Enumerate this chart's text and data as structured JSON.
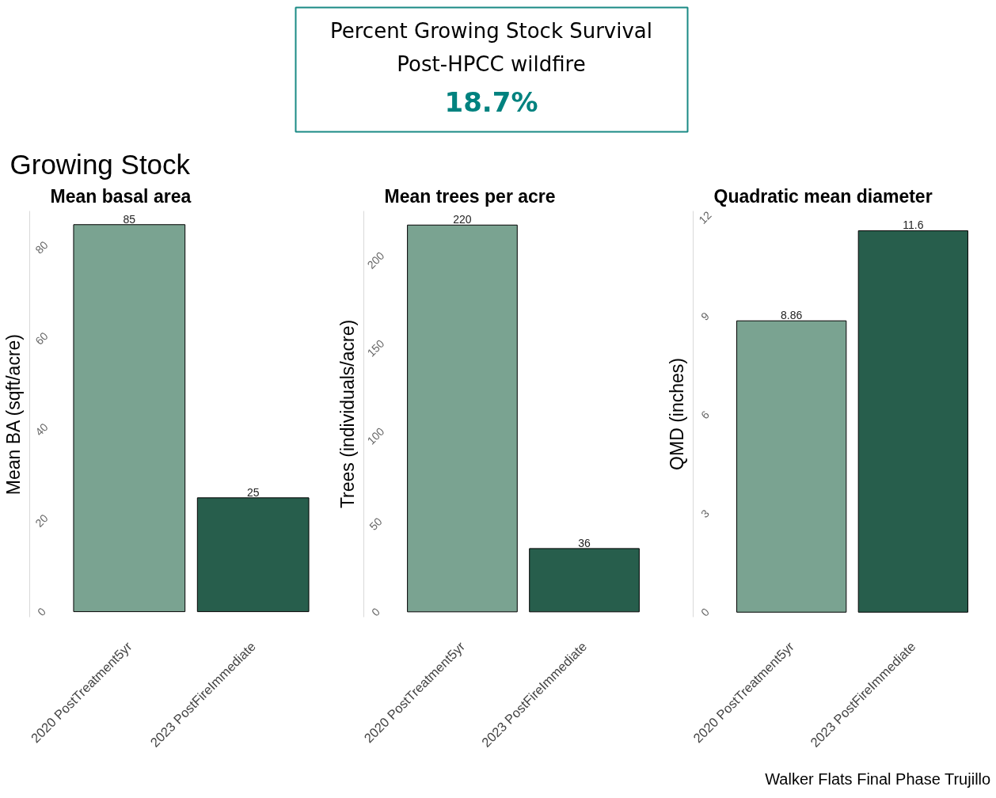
{
  "chart_data": [
    {
      "type": "other",
      "title": "Percent Growing Stock Survival\nPost-HPCC wildfire",
      "annotations": [
        "18.7%"
      ]
    },
    {
      "type": "bar",
      "subtitle": "Growing Stock",
      "title": "Mean basal area",
      "ylabel": "Mean BA (sqft/acre)",
      "categories": [
        "2020 PostTreatment5yr",
        "2023 PostFireImmediate"
      ],
      "values": [
        85,
        25
      ],
      "colors": [
        "#7aa391",
        "#275e4c"
      ],
      "ylim": [
        -1.2,
        88
      ],
      "yticks": [
        0,
        20,
        40,
        60,
        80
      ],
      "data_labels": true
    },
    {
      "type": "bar",
      "title": "Mean trees per acre",
      "ylabel": "Trees (individuals/acre)",
      "categories": [
        "2020 PostTreatment5yr",
        "2023 PostFireImmediate"
      ],
      "values": [
        220,
        36
      ],
      "colors": [
        "#7aa391",
        "#275e4c"
      ],
      "ylim": [
        -3,
        228
      ],
      "yticks": [
        0,
        50,
        100,
        150,
        200
      ],
      "data_labels": true
    },
    {
      "type": "bar",
      "title": "Quadratic mean diameter",
      "ylabel": "QMD (inches)",
      "categories": [
        "2020 PostTreatment5yr",
        "2023 PostFireImmediate"
      ],
      "values": [
        8.86,
        11.6
      ],
      "colors": [
        "#7aa391",
        "#275e4c"
      ],
      "ylim": [
        -0.15,
        12.2
      ],
      "yticks": [
        0,
        3,
        6,
        9,
        12
      ],
      "data_labels": true,
      "annotations": [
        "Walker Flats Final Phase Trujillo"
      ]
    }
  ]
}
